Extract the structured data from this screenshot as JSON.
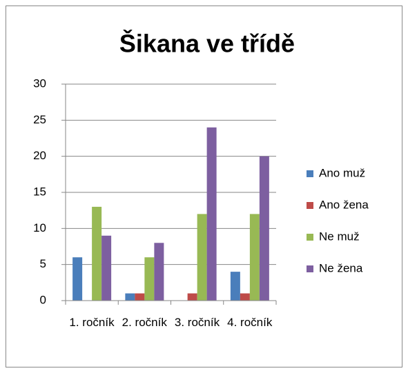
{
  "chart_data": {
    "type": "bar",
    "title": "Šikana ve třídě",
    "categories": [
      "1. ročník",
      "2. ročník",
      "3. ročník",
      "4. ročník"
    ],
    "series": [
      {
        "name": "Ano muž",
        "color": "#4a7ebb",
        "values": [
          6,
          1,
          0,
          4
        ]
      },
      {
        "name": "Ano žena",
        "color": "#be4b48",
        "values": [
          0,
          1,
          1,
          1
        ]
      },
      {
        "name": "Ne muž",
        "color": "#98b954",
        "values": [
          13,
          6,
          12,
          12
        ]
      },
      {
        "name": "Ne žena",
        "color": "#7d5fa0",
        "values": [
          9,
          8,
          24,
          20
        ]
      }
    ],
    "ylim": [
      0,
      30
    ],
    "yticks": [
      0,
      5,
      10,
      15,
      20,
      25,
      30
    ],
    "grid": true,
    "legend": "right"
  }
}
